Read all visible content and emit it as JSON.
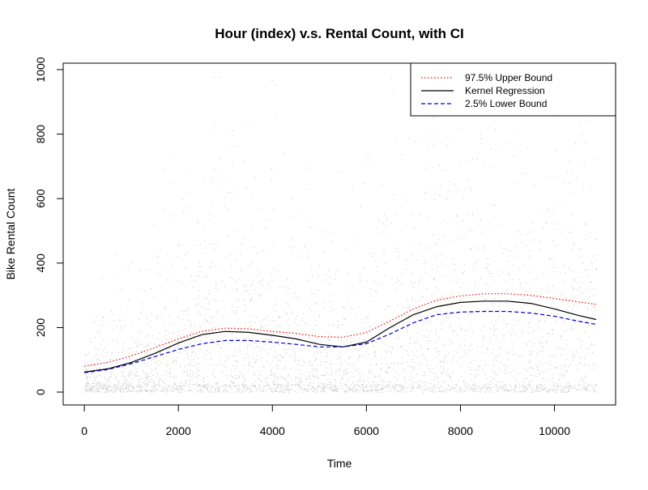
{
  "chart_data": {
    "type": "scatter",
    "title": "Hour (index) v.s. Rental Count, with CI",
    "xlabel": "Time",
    "ylabel": "Bike Rental Count",
    "xlim": [
      -450,
      11300
    ],
    "ylim": [
      -40,
      1020
    ],
    "x_ticks": [
      0,
      2000,
      4000,
      6000,
      8000,
      10000
    ],
    "y_ticks": [
      0,
      200,
      400,
      600,
      800,
      1000
    ],
    "grid": false,
    "legend_position": "top-right",
    "colors": {
      "upper": "#ff0000",
      "kernel": "#000000",
      "lower": "#0000cc",
      "points": "#9a9a9a"
    },
    "scatter_cloud": {
      "x_range": [
        0,
        10886
      ],
      "y_range": [
        1,
        977
      ],
      "point_count": 10886,
      "description_of_density": "dense near y=0, envelope of the scattered counts rises with time"
    },
    "series": [
      {
        "name": "97.5% Upper Bound",
        "style": "dotted",
        "color": "#ff0000",
        "x": [
          0,
          500,
          1000,
          1500,
          2000,
          2500,
          3000,
          3500,
          4000,
          4500,
          5000,
          5500,
          6000,
          6500,
          7000,
          7500,
          8000,
          8500,
          9000,
          9500,
          10000,
          10500,
          10886
        ],
        "y": [
          80,
          92,
          112,
          138,
          165,
          188,
          198,
          196,
          188,
          182,
          172,
          170,
          185,
          220,
          258,
          285,
          298,
          305,
          305,
          300,
          290,
          280,
          272
        ]
      },
      {
        "name": "Kernel Regression",
        "style": "solid",
        "color": "#000000",
        "x": [
          0,
          500,
          1000,
          1500,
          2000,
          2500,
          3000,
          3500,
          4000,
          4500,
          5000,
          5500,
          6000,
          6500,
          7000,
          7500,
          8000,
          8500,
          9000,
          9500,
          10000,
          10500,
          10886
        ],
        "y": [
          62,
          72,
          92,
          120,
          152,
          178,
          188,
          185,
          176,
          165,
          148,
          140,
          155,
          200,
          240,
          265,
          278,
          282,
          282,
          275,
          258,
          238,
          225
        ]
      },
      {
        "name": "2.5% Lower Bound",
        "style": "dashed",
        "color": "#0000cc",
        "x": [
          0,
          500,
          1000,
          1500,
          2000,
          2500,
          3000,
          3500,
          4000,
          4500,
          5000,
          5500,
          6000,
          6500,
          7000,
          7500,
          8000,
          8500,
          9000,
          9500,
          10000,
          10500,
          10886
        ],
        "y": [
          60,
          70,
          88,
          110,
          132,
          150,
          160,
          160,
          155,
          148,
          140,
          140,
          150,
          180,
          215,
          240,
          248,
          250,
          250,
          245,
          235,
          220,
          210
        ]
      }
    ]
  }
}
